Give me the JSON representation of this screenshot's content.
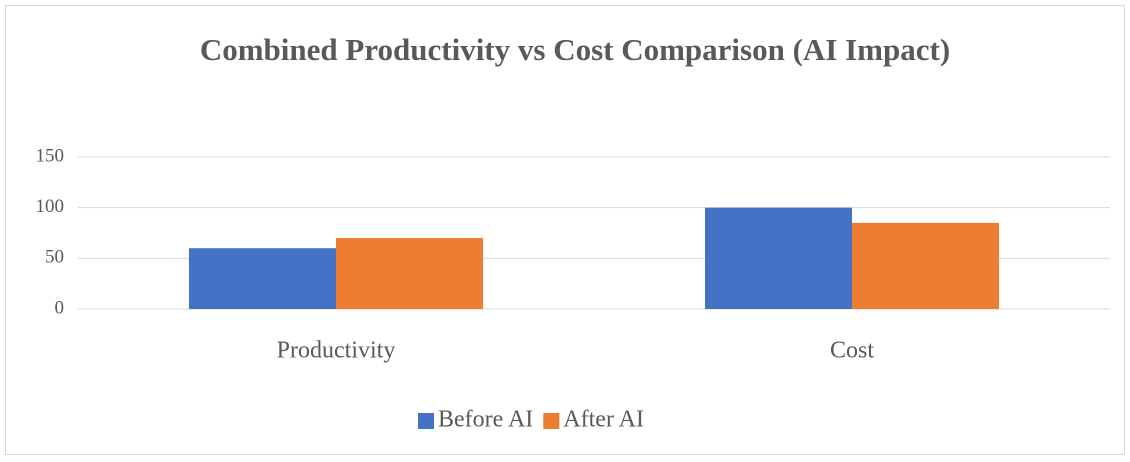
{
  "chart_data": {
    "type": "bar",
    "title": "Combined Productivity vs Cost Comparison (AI Impact)",
    "categories": [
      "Productivity",
      "Cost"
    ],
    "series": [
      {
        "name": "Before AI",
        "color": "#4472c4",
        "values": [
          60,
          100
        ]
      },
      {
        "name": "After AI",
        "color": "#ed7d31",
        "values": [
          70,
          85
        ]
      }
    ],
    "ylim": [
      0,
      150
    ],
    "yticks": [
      0,
      50,
      100,
      150
    ],
    "grid": true,
    "legend": "bottom"
  }
}
